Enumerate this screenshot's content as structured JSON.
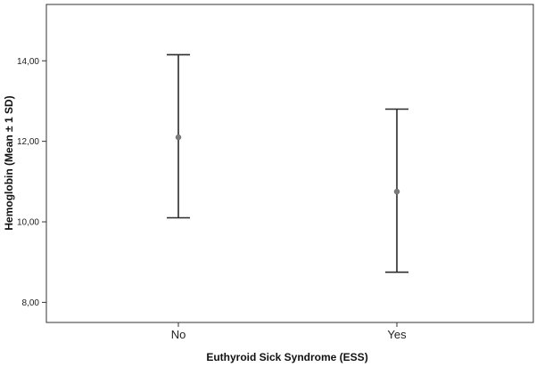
{
  "chart_data": {
    "type": "errorbar",
    "xlabel": "Euthyroid Sick Syndrome (ESS)",
    "ylabel": "Hemoglobin (Mean ± 1 SD)",
    "categories": [
      "No",
      "Yes"
    ],
    "points": [
      {
        "category": "No",
        "mean": 12.1,
        "lower": 10.1,
        "upper": 14.15
      },
      {
        "category": "Yes",
        "mean": 10.75,
        "lower": 8.75,
        "upper": 12.8
      }
    ],
    "yticks": [
      8,
      10,
      12,
      14
    ],
    "ytick_labels": [
      "8,00",
      "10,00",
      "12,00",
      "14,00"
    ],
    "ylim": [
      7.5,
      15.4
    ],
    "grid": false,
    "colors": {
      "line": "#2b2b2b",
      "point": "#7a7a7a",
      "frame": "#333333"
    }
  }
}
